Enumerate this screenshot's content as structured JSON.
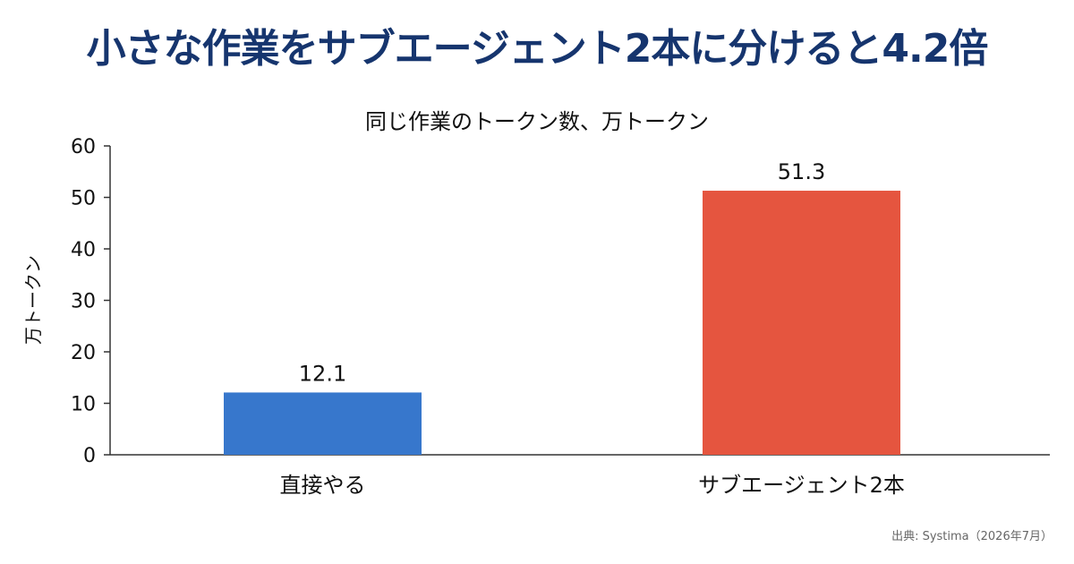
{
  "headline": "小さな作業をサブエージェント2本に分けると4.2倍",
  "source": "出典: Systima（2026年7月）",
  "colors": {
    "headline": "#16356e",
    "bar_direct": "#3777cc",
    "bar_subagent": "#e5553f",
    "text": "#111111",
    "axis": "#333333"
  },
  "chart_data": {
    "type": "bar",
    "title": "同じ作業のトークン数、万トークン",
    "xlabel": "",
    "ylabel": "万トークン",
    "categories": [
      "直接やる",
      "サブエージェント2本"
    ],
    "values": [
      12.1,
      51.3
    ],
    "value_labels": [
      "12.1",
      "51.3"
    ],
    "ylim": [
      0,
      60
    ],
    "yticks": [
      0,
      10,
      20,
      30,
      40,
      50,
      60
    ],
    "ytick_labels": [
      "0",
      "10",
      "20",
      "30",
      "40",
      "50",
      "60"
    ],
    "grid": false,
    "legend": "none"
  }
}
